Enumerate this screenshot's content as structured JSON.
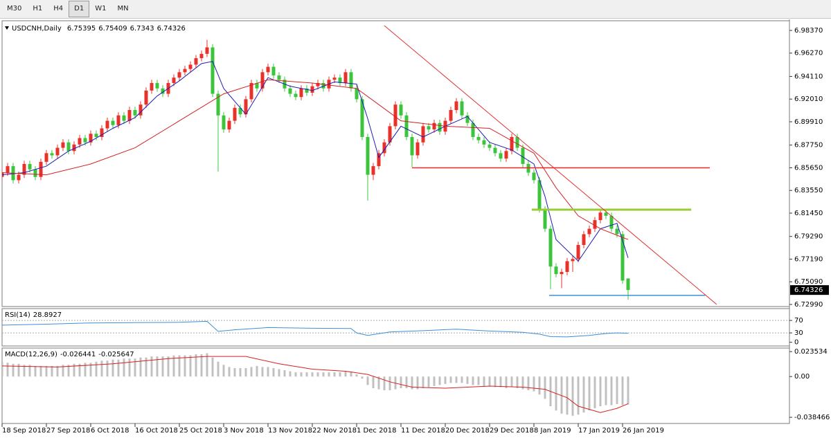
{
  "toolbar": {
    "items": [
      "M30",
      "H1",
      "H4",
      "D1",
      "W1",
      "MN"
    ],
    "active": "D1"
  },
  "chart_data": [
    {
      "type": "candlestick",
      "title": "USDCNH,Daily",
      "up_color": "#e8312a",
      "down_color": "#3dc43d",
      "open": [
        6.848,
        6.852,
        6.858,
        6.845,
        6.85,
        6.86,
        6.855,
        6.848,
        6.862,
        6.87,
        6.868,
        6.875,
        6.88,
        6.872,
        6.878,
        6.884,
        6.88,
        6.888,
        6.885,
        6.893,
        6.9,
        6.896,
        6.905,
        6.9,
        6.91,
        6.905,
        6.915,
        6.928,
        6.935,
        6.93,
        6.925,
        6.935,
        6.94,
        6.945,
        6.948,
        6.952,
        6.958,
        6.962,
        6.968,
        6.925,
        6.905,
        6.892,
        6.9,
        6.912,
        6.906,
        6.92,
        6.935,
        6.93,
        6.945,
        6.95,
        6.942,
        6.938,
        6.93,
        6.925,
        6.922,
        6.93,
        6.926,
        6.932,
        6.935,
        6.93,
        6.938,
        6.94,
        6.935,
        6.945,
        6.93,
        6.92,
        6.885,
        6.85,
        6.858,
        6.87,
        6.88,
        6.895,
        6.915,
        6.905,
        6.885,
        6.868,
        6.88,
        6.895,
        6.892,
        6.898,
        6.89,
        6.9,
        6.91,
        6.918,
        6.905,
        6.898,
        6.885,
        6.882,
        6.878,
        6.875,
        6.87,
        6.865,
        6.872,
        6.885,
        6.875,
        6.86,
        6.852,
        6.845,
        6.818,
        6.8,
        6.765,
        6.758,
        6.76,
        6.77,
        6.772,
        6.785,
        6.795,
        6.8,
        6.808,
        6.815,
        6.812,
        6.8,
        6.795,
        6.75395
      ],
      "high": [
        6.855,
        6.861,
        6.861,
        6.853,
        6.863,
        6.863,
        6.858,
        6.865,
        6.873,
        6.873,
        6.878,
        6.883,
        6.883,
        6.881,
        6.887,
        6.887,
        6.891,
        6.891,
        6.896,
        6.903,
        6.903,
        6.908,
        6.908,
        6.913,
        6.913,
        6.918,
        6.931,
        6.938,
        6.938,
        6.933,
        6.938,
        6.943,
        6.948,
        6.951,
        6.955,
        6.961,
        6.965,
        6.975,
        6.971,
        6.928,
        6.908,
        6.903,
        6.915,
        6.915,
        6.923,
        6.938,
        6.938,
        6.948,
        6.953,
        6.953,
        6.945,
        6.941,
        6.933,
        6.928,
        6.933,
        6.933,
        6.935,
        6.938,
        6.938,
        6.941,
        6.943,
        6.943,
        6.948,
        6.948,
        6.933,
        6.923,
        6.888,
        6.861,
        6.873,
        6.883,
        6.898,
        6.918,
        6.918,
        6.908,
        6.888,
        6.883,
        6.898,
        6.898,
        6.901,
        6.901,
        6.903,
        6.913,
        6.921,
        6.921,
        6.908,
        6.901,
        6.888,
        6.885,
        6.881,
        6.878,
        6.873,
        6.875,
        6.888,
        6.888,
        6.878,
        6.863,
        6.855,
        6.848,
        6.821,
        6.803,
        6.768,
        6.763,
        6.773,
        6.775,
        6.788,
        6.798,
        6.803,
        6.811,
        6.818,
        6.818,
        6.815,
        6.803,
        6.798,
        6.75409
      ],
      "low": [
        6.845,
        6.849,
        6.842,
        6.842,
        6.847,
        6.852,
        6.845,
        6.845,
        6.859,
        6.865,
        6.865,
        6.872,
        6.869,
        6.869,
        6.875,
        6.877,
        6.877,
        6.882,
        6.882,
        6.89,
        6.893,
        6.893,
        6.897,
        6.897,
        6.902,
        6.902,
        6.912,
        6.925,
        6.927,
        6.922,
        6.922,
        6.932,
        6.937,
        6.942,
        6.945,
        6.949,
        6.955,
        6.959,
        6.922,
        6.853,
        6.889,
        6.889,
        6.897,
        6.903,
        6.903,
        6.917,
        6.927,
        6.927,
        6.942,
        6.939,
        6.935,
        6.927,
        6.922,
        6.919,
        6.919,
        6.923,
        6.923,
        6.929,
        6.927,
        6.927,
        6.935,
        6.932,
        6.932,
        6.927,
        6.917,
        6.882,
        6.826,
        6.845,
        6.855,
        6.867,
        6.877,
        6.892,
        6.902,
        6.882,
        6.857,
        6.865,
        6.877,
        6.889,
        6.889,
        6.887,
        6.887,
        6.897,
        6.907,
        6.902,
        6.895,
        6.882,
        6.879,
        6.875,
        6.872,
        6.867,
        6.862,
        6.862,
        6.869,
        6.872,
        6.857,
        6.849,
        6.842,
        6.815,
        6.797,
        6.744,
        6.755,
        6.745,
        6.757,
        6.76,
        6.769,
        6.782,
        6.792,
        6.797,
        6.805,
        6.809,
        6.797,
        6.792,
        6.749,
        6.7343
      ],
      "close": [
        6.852,
        6.858,
        6.845,
        6.85,
        6.86,
        6.855,
        6.848,
        6.862,
        6.87,
        6.868,
        6.875,
        6.88,
        6.872,
        6.878,
        6.884,
        6.88,
        6.888,
        6.885,
        6.893,
        6.9,
        6.896,
        6.905,
        6.9,
        6.91,
        6.905,
        6.915,
        6.928,
        6.935,
        6.93,
        6.925,
        6.935,
        6.94,
        6.945,
        6.948,
        6.952,
        6.958,
        6.962,
        6.968,
        6.925,
        6.905,
        6.892,
        6.9,
        6.912,
        6.906,
        6.92,
        6.935,
        6.93,
        6.945,
        6.95,
        6.942,
        6.938,
        6.93,
        6.925,
        6.922,
        6.93,
        6.926,
        6.932,
        6.935,
        6.93,
        6.938,
        6.94,
        6.935,
        6.945,
        6.93,
        6.92,
        6.885,
        6.85,
        6.858,
        6.87,
        6.88,
        6.895,
        6.915,
        6.905,
        6.885,
        6.868,
        6.88,
        6.895,
        6.892,
        6.898,
        6.89,
        6.9,
        6.91,
        6.918,
        6.905,
        6.898,
        6.885,
        6.882,
        6.878,
        6.875,
        6.87,
        6.865,
        6.872,
        6.885,
        6.875,
        6.86,
        6.852,
        6.845,
        6.818,
        6.8,
        6.765,
        6.758,
        6.76,
        6.77,
        6.772,
        6.785,
        6.795,
        6.8,
        6.808,
        6.815,
        6.812,
        6.8,
        6.795,
        6.752,
        6.74326
      ],
      "series": [
        {
          "color": "#1c1cb4",
          "x": [
            0,
            4,
            8,
            12,
            16,
            20,
            24,
            28,
            32,
            36,
            38,
            40,
            44,
            48,
            52,
            56,
            60,
            64,
            66,
            68,
            72,
            76,
            80,
            84,
            88,
            92,
            96,
            98,
            100,
            104,
            108,
            111,
            113
          ],
          "values": [
            6.85,
            6.852,
            6.858,
            6.872,
            6.881,
            6.893,
            6.903,
            6.923,
            6.937,
            6.953,
            6.955,
            6.93,
            6.906,
            6.94,
            6.932,
            6.928,
            6.936,
            6.934,
            6.902,
            6.866,
            6.895,
            6.885,
            6.895,
            6.904,
            6.88,
            6.873,
            6.86,
            6.83,
            6.79,
            6.77,
            6.8,
            6.805,
            6.773
          ]
        },
        {
          "color": "#d42020",
          "x": [
            0,
            8,
            16,
            24,
            32,
            40,
            48,
            56,
            64,
            68,
            72,
            80,
            88,
            96,
            100,
            104,
            108,
            113
          ],
          "values": [
            6.852,
            6.85,
            6.86,
            6.875,
            6.9,
            6.925,
            6.938,
            6.935,
            6.93,
            6.915,
            6.9,
            6.895,
            6.893,
            6.87,
            6.838,
            6.812,
            6.8,
            6.79
          ]
        }
      ],
      "levels": [
        {
          "value": 6.8565,
          "x": [
            74,
            127.75
          ],
          "color": "#ff2020",
          "width": 1.5
        },
        {
          "value": 6.8177,
          "x": [
            95.6,
            124.4
          ],
          "color": "#9acd32",
          "width": 3
        },
        {
          "value": 6.7383,
          "x": [
            98.75,
            126.9
          ],
          "color": "#3c8fd8",
          "width": 1.5
        }
      ],
      "trendlines": [
        {
          "x": [
            69,
            129
          ],
          "values": [
            6.98817,
            6.7299
          ],
          "color": "#e03030"
        }
      ],
      "xlim": [
        0,
        142.125
      ],
      "xticks": [
        {
          "value": 0,
          "label": "18 Sep 2018"
        },
        {
          "value": 8,
          "label": "27 Sep 2018"
        },
        {
          "value": 16,
          "label": "6 Oct 2018"
        },
        {
          "value": 24,
          "label": "16 Oct 2018"
        },
        {
          "value": 32,
          "label": "25 Oct 2018"
        },
        {
          "value": 40,
          "label": "3 Nov 2018"
        },
        {
          "value": 48,
          "label": "13 Nov 2018"
        },
        {
          "value": 56,
          "label": "22 Nov 2018"
        },
        {
          "value": 64,
          "label": "1 Dec 2018"
        },
        {
          "value": 72,
          "label": "11 Dec 2018"
        },
        {
          "value": 80,
          "label": "20 Dec 2018"
        },
        {
          "value": 88,
          "label": "29 Dec 2018"
        },
        {
          "value": 96,
          "label": "8 Jan 2019"
        },
        {
          "value": 104,
          "label": "17 Jan 2019"
        },
        {
          "value": 112,
          "label": "26 Jan 2019"
        }
      ],
      "ylim": [
        6.72798,
        6.99265
      ],
      "yticks": [
        {
          "value": 6.9837,
          "label": "6.98370"
        },
        {
          "value": 6.9627,
          "label": "6.96270"
        },
        {
          "value": 6.9411,
          "label": "6.94110"
        },
        {
          "value": 6.9201,
          "label": "6.92010"
        },
        {
          "value": 6.8991,
          "label": "6.89910"
        },
        {
          "value": 6.8775,
          "label": "6.87750"
        },
        {
          "value": 6.8565,
          "label": "6.85650"
        },
        {
          "value": 6.8355,
          "label": "6.83550"
        },
        {
          "value": 6.8145,
          "label": "6.81450"
        },
        {
          "value": 6.7929,
          "label": "6.79290"
        },
        {
          "value": 6.7719,
          "label": "6.77190"
        },
        {
          "value": 6.7509,
          "label": "6.75090"
        },
        {
          "value": 6.7299,
          "label": "6.72990"
        }
      ]
    },
    {
      "type": "line",
      "title": "RSI(14)",
      "color": "#3b8fd6",
      "x": [
        0,
        8,
        16,
        24,
        32,
        37,
        39,
        42,
        48,
        56,
        63,
        64,
        66,
        70,
        76,
        82,
        88,
        94,
        97,
        99,
        102,
        106,
        109,
        111,
        113
      ],
      "values": [
        55,
        58,
        62,
        63,
        64,
        67,
        35,
        40,
        47,
        45,
        44,
        30,
        22,
        33,
        37,
        42,
        36,
        32,
        26,
        18,
        17,
        22,
        28,
        30,
        28.8927
      ],
      "levels": [
        70,
        30
      ],
      "ylim": [
        -12,
        108
      ],
      "yticks": [
        70,
        30,
        0
      ]
    },
    {
      "type": "bar",
      "title": "MACD(12,26,9)",
      "color": "#c0c0c0",
      "values": [
        0.014,
        0.013,
        0.012,
        0.012,
        0.011,
        0.011,
        0.01,
        0.01,
        0.01,
        0.01,
        0.01,
        0.011,
        0.011,
        0.012,
        0.012,
        0.013,
        0.013,
        0.014,
        0.015,
        0.015,
        0.016,
        0.016,
        0.017,
        0.017,
        0.017,
        0.018,
        0.018,
        0.019,
        0.019,
        0.019,
        0.019,
        0.02,
        0.02,
        0.02,
        0.02,
        0.021,
        0.021,
        0.022,
        0.018,
        0.014,
        0.011,
        0.009,
        0.008,
        0.008,
        0.008,
        0.009,
        0.01,
        0.009,
        0.009,
        0.008,
        0.007,
        0.006,
        0.005,
        0.004,
        0.004,
        0.004,
        0.004,
        0.004,
        0.004,
        0.004,
        0.004,
        0.004,
        0.005,
        0.004,
        0.002,
        -0.002,
        -0.008,
        -0.011,
        -0.012,
        -0.013,
        -0.013,
        -0.012,
        -0.011,
        -0.011,
        -0.012,
        -0.012,
        -0.011,
        -0.01,
        -0.009,
        -0.008,
        -0.007,
        -0.006,
        -0.006,
        -0.006,
        -0.007,
        -0.008,
        -0.008,
        -0.009,
        -0.009,
        -0.01,
        -0.01,
        -0.011,
        -0.01,
        -0.011,
        -0.012,
        -0.013,
        -0.014,
        -0.017,
        -0.021,
        -0.028,
        -0.032,
        -0.035,
        -0.036,
        -0.037,
        -0.036,
        -0.034,
        -0.032,
        -0.03,
        -0.028,
        -0.027,
        -0.027,
        -0.026,
        -0.027,
        -0.026441
      ],
      "signal": {
        "color": "#d42020",
        "x": [
          0,
          10,
          20,
          30,
          37,
          44,
          50,
          56,
          62,
          66,
          70,
          74,
          80,
          88,
          94,
          98,
          102,
          104,
          108,
          111,
          113
        ],
        "values": [
          0.01,
          0.009,
          0.012,
          0.017,
          0.019,
          0.019,
          0.012,
          0.007,
          0.005,
          0.002,
          -0.005,
          -0.01,
          -0.011,
          -0.009,
          -0.01,
          -0.012,
          -0.02,
          -0.028,
          -0.034,
          -0.03,
          -0.025647
        ]
      },
      "ylim": [
        -0.0443,
        0.0269
      ],
      "yticks": [
        0.023534,
        {
          "value": 0,
          "label": "0.00"
        },
        -0.038466
      ]
    }
  ]
}
